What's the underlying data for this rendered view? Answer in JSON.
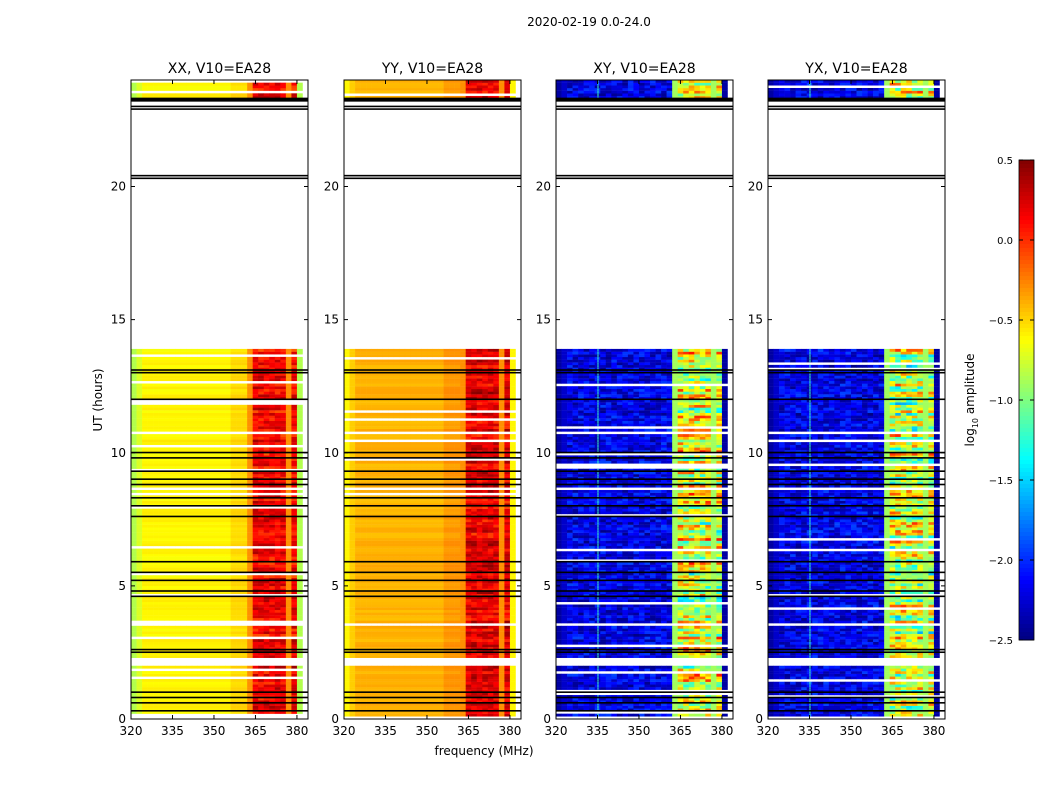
{
  "chart_data": {
    "type": "heatmap",
    "title": "2020-02-19 0.0-24.0",
    "xlabel": "frequency (MHz)",
    "ylabel": "UT (hours)",
    "xlim": [
      320,
      384
    ],
    "ylim": [
      0,
      24
    ],
    "xticks": [
      "320",
      "335",
      "350",
      "365",
      "380"
    ],
    "yticks": [
      "0",
      "5",
      "10",
      "15",
      "20"
    ],
    "panels": [
      {
        "title": "XX, V10=EA28",
        "base": -0.6,
        "band": 0.15,
        "edge": -0.85
      },
      {
        "title": "YY, V10=EA28",
        "base": -0.4,
        "band": 0.2,
        "edge": -0.6
      },
      {
        "title": "XY, V10=EA28",
        "base": -2.3,
        "band": -0.3,
        "edge": -2.4
      },
      {
        "title": "YX, V10=EA28",
        "base": -2.3,
        "band": -0.4,
        "edge": -2.4
      }
    ],
    "band_mhz": [
      362,
      380
    ],
    "data_blocks_hours": [
      [
        0.1,
        2.0
      ],
      [
        2.3,
        3.5
      ],
      [
        3.6,
        8.6
      ],
      [
        8.7,
        10.7
      ],
      [
        10.8,
        13.9
      ],
      [
        23.2,
        24
      ]
    ],
    "flagged_rows_hours": [
      0.3,
      0.6,
      0.8,
      1.0,
      2.5,
      2.6,
      4.6,
      4.8,
      5.2,
      5.5,
      5.9,
      7.6,
      8.0,
      8.3,
      8.8,
      9.0,
      9.3,
      9.8,
      10.0,
      12.0,
      13.0,
      13.1,
      20.3,
      20.4,
      22.9,
      23.0,
      23.3
    ],
    "colorbar": {
      "label": "log10 amplitude",
      "label_main": "log",
      "label_sub": "10",
      "label_rest": " amplitude",
      "range": [
        -2.5,
        0.5
      ],
      "ticks": [
        "0.5",
        "0.0",
        "−0.5",
        "−1.0",
        "−1.5",
        "−2.0",
        "−2.5"
      ],
      "colormap": "jet"
    }
  }
}
